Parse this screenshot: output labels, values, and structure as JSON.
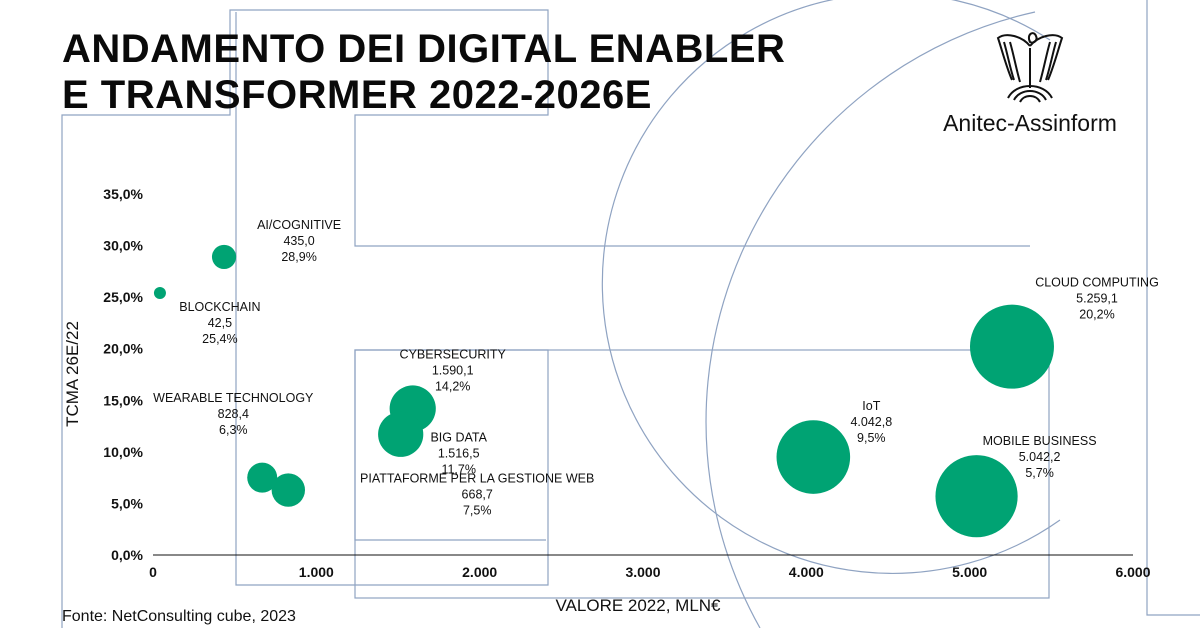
{
  "header": {
    "title_line1": "ANDAMENTO DEI DIGITAL ENABLER",
    "title_line2": "E TRANSFORMER 2022-2026E"
  },
  "brand": {
    "name": "Anitec-Assinform",
    "logo_icon": "eagle-emblem-icon"
  },
  "footer": {
    "source": "Fonte: NetConsulting cube, 2023"
  },
  "colors": {
    "bubble": "#00a373",
    "outline": "#8fa3c2",
    "text": "#111111"
  },
  "chart_data": {
    "type": "scatter",
    "variant": "bubble",
    "xlabel": "VALORE 2022, MLN€",
    "ylabel": "TCMA 26E/22",
    "xlim": [
      0,
      6000
    ],
    "ylim": [
      0,
      35
    ],
    "xticks": [
      "0",
      "1.000",
      "2.000",
      "3.000",
      "4.000",
      "5.000",
      "6.000"
    ],
    "yticks": [
      "0,0%",
      "5,0%",
      "10,0%",
      "15,0%",
      "20,0%",
      "25,0%",
      "30,0%",
      "35,0%"
    ],
    "grid": false,
    "points": [
      {
        "name": "AI/COGNITIVE",
        "x": 435.0,
        "y": 28.9,
        "value_label": "435,0",
        "growth_label": "28,9%"
      },
      {
        "name": "BLOCKCHAIN",
        "x": 42.5,
        "y": 25.4,
        "value_label": "42,5",
        "growth_label": "25,4%"
      },
      {
        "name": "WEARABLE TECHNOLOGY",
        "x": 828.4,
        "y": 6.3,
        "value_label": "828,4",
        "growth_label": "6,3%"
      },
      {
        "name": "PIATTAFORME PER LA GESTIONE WEB",
        "x": 668.7,
        "y": 7.5,
        "value_label": "668,7",
        "growth_label": "7,5%"
      },
      {
        "name": "CYBERSECURITY",
        "x": 1590.1,
        "y": 14.2,
        "value_label": "1.590,1",
        "growth_label": "14,2%"
      },
      {
        "name": "BIG DATA",
        "x": 1516.5,
        "y": 11.7,
        "value_label": "1.516,5",
        "growth_label": "11,7%"
      },
      {
        "name": "IoT",
        "x": 4042.8,
        "y": 9.5,
        "value_label": "4.042,8",
        "growth_label": "9,5%"
      },
      {
        "name": "CLOUD COMPUTING",
        "x": 5259.1,
        "y": 20.2,
        "value_label": "5.259,1",
        "growth_label": "20,2%"
      },
      {
        "name": "MOBILE BUSINESS",
        "x": 5042.2,
        "y": 5.7,
        "value_label": "5.042,2",
        "growth_label": "5,7%"
      }
    ]
  }
}
